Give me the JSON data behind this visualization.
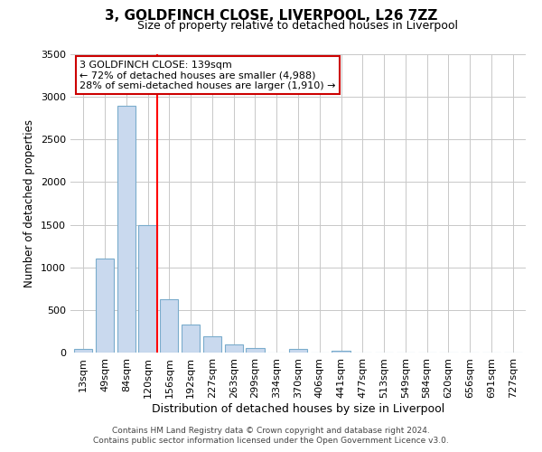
{
  "title": "3, GOLDFINCH CLOSE, LIVERPOOL, L26 7ZZ",
  "subtitle": "Size of property relative to detached houses in Liverpool",
  "xlabel": "Distribution of detached houses by size in Liverpool",
  "ylabel": "Number of detached properties",
  "bar_labels": [
    "13sqm",
    "49sqm",
    "84sqm",
    "120sqm",
    "156sqm",
    "192sqm",
    "227sqm",
    "263sqm",
    "299sqm",
    "334sqm",
    "370sqm",
    "406sqm",
    "441sqm",
    "477sqm",
    "513sqm",
    "549sqm",
    "584sqm",
    "620sqm",
    "656sqm",
    "691sqm",
    "727sqm"
  ],
  "bar_values": [
    45,
    1100,
    2900,
    1500,
    630,
    330,
    195,
    100,
    50,
    0,
    45,
    0,
    20,
    0,
    0,
    0,
    0,
    0,
    0,
    0,
    0
  ],
  "bar_color": "#c9d9ee",
  "bar_edge_color": "#7aaccc",
  "ylim": [
    0,
    3500
  ],
  "red_line_index": 3,
  "annotation_title": "3 GOLDFINCH CLOSE: 139sqm",
  "annotation_line1": "← 72% of detached houses are smaller (4,988)",
  "annotation_line2": "28% of semi-detached houses are larger (1,910) →",
  "annotation_box_facecolor": "#ffffff",
  "annotation_box_edgecolor": "#cc0000",
  "footer1": "Contains HM Land Registry data © Crown copyright and database right 2024.",
  "footer2": "Contains public sector information licensed under the Open Government Licence v3.0.",
  "grid_color": "#c8c8c8",
  "background_color": "#ffffff",
  "title_fontsize": 11,
  "subtitle_fontsize": 9,
  "ylabel_fontsize": 8.5,
  "xlabel_fontsize": 9,
  "tick_fontsize": 8,
  "annotation_fontsize": 8,
  "footer_fontsize": 6.5
}
